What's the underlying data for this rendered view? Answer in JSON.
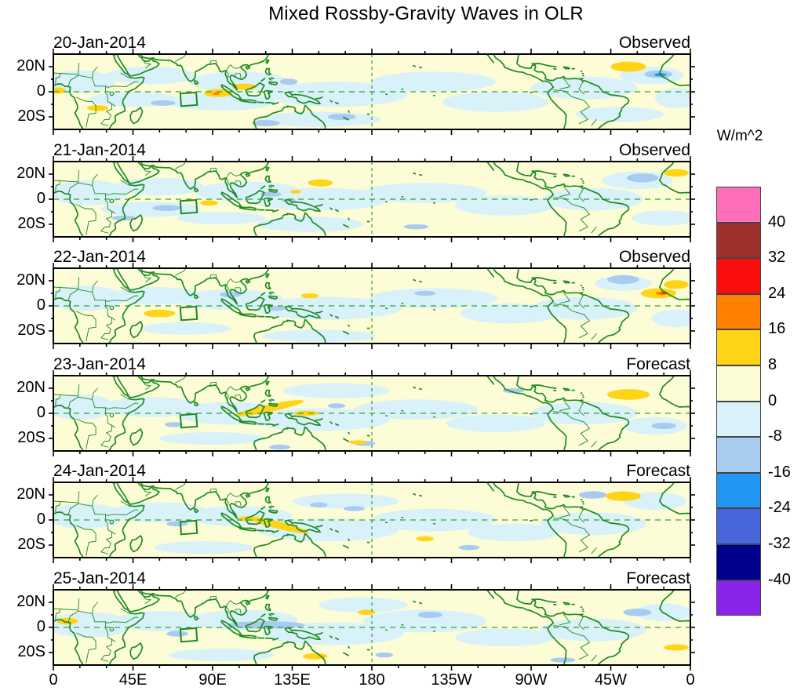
{
  "title": "Mixed Rossby-Gravity Waves in OLR",
  "colorbar": {
    "unit_label": "W/m^2",
    "tick_labels": [
      "40",
      "32",
      "24",
      "16",
      "8",
      "0",
      "-8",
      "-16",
      "-24",
      "-32",
      "-40"
    ],
    "colors_top_to_bottom": [
      "#FF6EB8",
      "#A0302A",
      "#FA0D0D",
      "#FF7F00",
      "#FFD416",
      "#FCFCD6",
      "#D9F1F9",
      "#A8CBF0",
      "#2196F3",
      "#4666D9",
      "#00008C",
      "#8A24E8"
    ]
  },
  "x_axis": {
    "tick_labels": [
      "0",
      "45E",
      "90E",
      "135E",
      "180",
      "135W",
      "90W",
      "45W",
      "0"
    ]
  },
  "y_axis": {
    "tick_labels": [
      "20N",
      "0",
      "20S"
    ]
  },
  "map_colors": {
    "background_0_8": "#FCFCD6",
    "coastline_green": "#1E8B22",
    "dashed_line_green": "#33A233",
    "frame_black": "#000000"
  },
  "chart_data": {
    "type": "heatmap",
    "subtype": "filled_contour_longitude_latitude_maps",
    "variable": "OLR anomaly (Mixed Rossby-Gravity wave filtered)",
    "units": "W/m^2",
    "lon_range": [
      0,
      360
    ],
    "lat_range": [
      -30,
      30
    ],
    "contour_levels": [
      -40,
      -32,
      -24,
      -16,
      -8,
      0,
      8,
      16,
      24,
      32,
      40
    ],
    "equator_dashed_line": true,
    "dateline_dashed_line_at_180": true,
    "target_box": {
      "lon_min": 72,
      "lon_max": 81,
      "lat_min": -11,
      "lat_max": -1
    },
    "anomaly_format": "[lon_deg_east, lat_deg, radius_lon, radius_lat, level_bucket_W_m2, rotation_deg_optional]",
    "panels": [
      {
        "date": "20-Jan-2014",
        "status": "Observed",
        "anomalies": [
          [
            15,
            8,
            20,
            9,
            -4
          ],
          [
            55,
            13,
            25,
            7,
            -4
          ],
          [
            45,
            -6,
            25,
            6,
            -4
          ],
          [
            105,
            8,
            28,
            8,
            -4
          ],
          [
            95,
            -8,
            30,
            7,
            -4
          ],
          [
            160,
            -2,
            40,
            10,
            -4
          ],
          [
            150,
            -22,
            35,
            6,
            -4
          ],
          [
            215,
            8,
            35,
            8,
            -4
          ],
          [
            250,
            -8,
            30,
            8,
            -4
          ],
          [
            300,
            3,
            30,
            9,
            -4
          ],
          [
            320,
            -18,
            25,
            6,
            -4
          ],
          [
            352,
            -5,
            12,
            8,
            -4
          ],
          [
            338,
            13,
            18,
            7,
            -4
          ],
          [
            342,
            14,
            8,
            3,
            -12
          ],
          [
            133,
            8,
            5,
            2.5,
            -12
          ],
          [
            62,
            -9,
            7,
            2.2,
            -12
          ],
          [
            163,
            -20,
            8,
            2.5,
            -12
          ],
          [
            120,
            -25,
            8,
            2.5,
            -12
          ],
          [
            343,
            13.5,
            3.5,
            1.3,
            -20
          ],
          [
            25,
            -13,
            6,
            2.3,
            12
          ],
          [
            93,
            -1,
            8,
            3.2,
            12
          ],
          [
            325,
            20,
            10,
            4,
            12
          ],
          [
            3,
            1,
            4,
            2.5,
            12
          ],
          [
            108,
            4,
            7,
            2.5,
            12
          ],
          [
            92,
            -1.5,
            2,
            1,
            20
          ]
        ]
      },
      {
        "date": "21-Jan-2014",
        "status": "Observed",
        "anomalies": [
          [
            20,
            5,
            22,
            10,
            -4
          ],
          [
            60,
            10,
            25,
            7,
            -4
          ],
          [
            55,
            -8,
            28,
            6,
            -4
          ],
          [
            110,
            6,
            30,
            8,
            -4
          ],
          [
            150,
            0,
            40,
            9,
            -4
          ],
          [
            145,
            -20,
            30,
            6,
            -4
          ],
          [
            210,
            5,
            35,
            8,
            -4
          ],
          [
            255,
            -5,
            28,
            8,
            -4
          ],
          [
            305,
            0,
            28,
            9,
            -4
          ],
          [
            345,
            -15,
            18,
            6,
            -4
          ],
          [
            330,
            15,
            20,
            7,
            -4
          ],
          [
            95,
            -15,
            25,
            5,
            -4
          ],
          [
            64,
            -7,
            8,
            2.4,
            -12
          ],
          [
            40,
            -15,
            7,
            2,
            -12
          ],
          [
            123,
            4,
            6,
            2,
            -12
          ],
          [
            133,
            -1,
            4,
            1.5,
            -12
          ],
          [
            333,
            17,
            9,
            3.5,
            -12
          ],
          [
            205,
            -22,
            7,
            2,
            -12
          ],
          [
            88,
            -3,
            5,
            2.2,
            12
          ],
          [
            151,
            13,
            7,
            2.8,
            12
          ],
          [
            352,
            21,
            7,
            3,
            12
          ],
          [
            137,
            6,
            3,
            1.5,
            12
          ]
        ]
      },
      {
        "date": "22-Jan-2014",
        "status": "Observed",
        "anomalies": [
          [
            18,
            6,
            22,
            10,
            -4
          ],
          [
            58,
            8,
            26,
            7,
            -4
          ],
          [
            100,
            5,
            30,
            8,
            -4
          ],
          [
            155,
            -2,
            42,
            9,
            -4
          ],
          [
            150,
            -24,
            32,
            5,
            -4
          ],
          [
            215,
            6,
            36,
            8,
            -4
          ],
          [
            258,
            -6,
            28,
            8,
            -4
          ],
          [
            300,
            -2,
            30,
            9,
            -4
          ],
          [
            322,
            18,
            16,
            6,
            -4
          ],
          [
            352,
            -10,
            14,
            7,
            -4
          ],
          [
            75,
            -18,
            25,
            5,
            -4
          ],
          [
            322,
            21,
            9,
            3.5,
            -12
          ],
          [
            100,
            9,
            6,
            2.2,
            -12
          ],
          [
            126,
            -2,
            5,
            2,
            -12
          ],
          [
            210,
            10,
            6,
            2,
            -12
          ],
          [
            60,
            -6,
            9,
            3,
            12
          ],
          [
            342,
            10,
            10,
            4,
            12
          ],
          [
            352,
            17,
            7,
            3.5,
            12
          ],
          [
            145,
            8,
            5,
            2,
            12
          ],
          [
            344,
            10,
            3.5,
            1.4,
            20
          ],
          [
            345,
            10.2,
            1.4,
            0.6,
            28
          ]
        ]
      },
      {
        "date": "23-Jan-2014",
        "status": "Forecast",
        "anomalies": [
          [
            15,
            5,
            20,
            10,
            -4
          ],
          [
            55,
            5,
            28,
            8,
            -4
          ],
          [
            100,
            0,
            32,
            9,
            -4
          ],
          [
            150,
            -5,
            40,
            9,
            -4
          ],
          [
            160,
            18,
            30,
            6,
            -4
          ],
          [
            205,
            3,
            35,
            8,
            -4
          ],
          [
            250,
            -8,
            28,
            7,
            -4
          ],
          [
            300,
            0,
            30,
            9,
            -4
          ],
          [
            340,
            -10,
            18,
            7,
            -4
          ],
          [
            90,
            -20,
            30,
            5,
            -4
          ],
          [
            68,
            -9,
            5,
            2,
            -12
          ],
          [
            160,
            6,
            5,
            2,
            -12
          ],
          [
            176,
            -24,
            6,
            2,
            -12
          ],
          [
            128,
            -27,
            6,
            2,
            -12
          ],
          [
            345,
            -10,
            7,
            2.5,
            -12
          ],
          [
            260,
            18,
            6,
            2,
            -12
          ],
          [
            122,
            4,
            20,
            3,
            12,
            -12
          ],
          [
            143,
            0,
            7,
            2,
            12
          ],
          [
            325,
            15,
            12,
            4.2,
            12
          ],
          [
            172,
            -23,
            5,
            1.6,
            12
          ]
        ]
      },
      {
        "date": "24-Jan-2014",
        "status": "Forecast",
        "anomalies": [
          [
            18,
            3,
            22,
            10,
            -4
          ],
          [
            60,
            6,
            28,
            8,
            -4
          ],
          [
            105,
            3,
            30,
            8,
            -4
          ],
          [
            155,
            -8,
            40,
            9,
            -4
          ],
          [
            165,
            15,
            30,
            6,
            -4
          ],
          [
            215,
            0,
            35,
            9,
            -4
          ],
          [
            260,
            -10,
            26,
            7,
            -4
          ],
          [
            305,
            -3,
            30,
            9,
            -4
          ],
          [
            340,
            15,
            18,
            7,
            -4
          ],
          [
            85,
            -22,
            28,
            5,
            -4
          ],
          [
            70,
            -3,
            6,
            2.2,
            -12
          ],
          [
            170,
            9,
            6,
            2,
            -12
          ],
          [
            235,
            -22,
            6,
            2,
            -12
          ],
          [
            305,
            20,
            8,
            3,
            -12
          ],
          [
            150,
            12,
            5,
            2,
            -12
          ],
          [
            127,
            -4,
            18,
            3,
            12,
            14
          ],
          [
            110,
            1,
            6,
            2,
            12
          ],
          [
            322,
            19,
            10,
            3.8,
            12
          ],
          [
            210,
            -15,
            5,
            2,
            12
          ]
        ]
      },
      {
        "date": "25-Jan-2014",
        "status": "Forecast",
        "anomalies": [
          [
            20,
            2,
            24,
            10,
            -4
          ],
          [
            62,
            5,
            28,
            8,
            -4
          ],
          [
            108,
            6,
            30,
            8,
            -4
          ],
          [
            158,
            -5,
            40,
            9,
            -4
          ],
          [
            210,
            5,
            35,
            9,
            -4
          ],
          [
            255,
            -8,
            28,
            7,
            -4
          ],
          [
            305,
            -2,
            30,
            9,
            -4
          ],
          [
            345,
            12,
            16,
            7,
            -4
          ],
          [
            95,
            -22,
            30,
            5,
            -4
          ],
          [
            175,
            18,
            25,
            6,
            -4
          ],
          [
            120,
            2,
            22,
            3,
            -12
          ],
          [
            70,
            -5,
            6,
            2.4,
            -12
          ],
          [
            213,
            10,
            7,
            2.5,
            -12
          ],
          [
            187,
            -22,
            5,
            2,
            -12
          ],
          [
            330,
            12,
            8,
            3,
            -12
          ],
          [
            288,
            -26,
            7,
            2,
            -12
          ],
          [
            8,
            5,
            6,
            2.6,
            12
          ],
          [
            148,
            -23,
            7,
            2.5,
            12
          ],
          [
            177,
            12,
            5,
            2,
            12
          ],
          [
            352,
            -16,
            7,
            2.5,
            12
          ]
        ]
      }
    ]
  }
}
